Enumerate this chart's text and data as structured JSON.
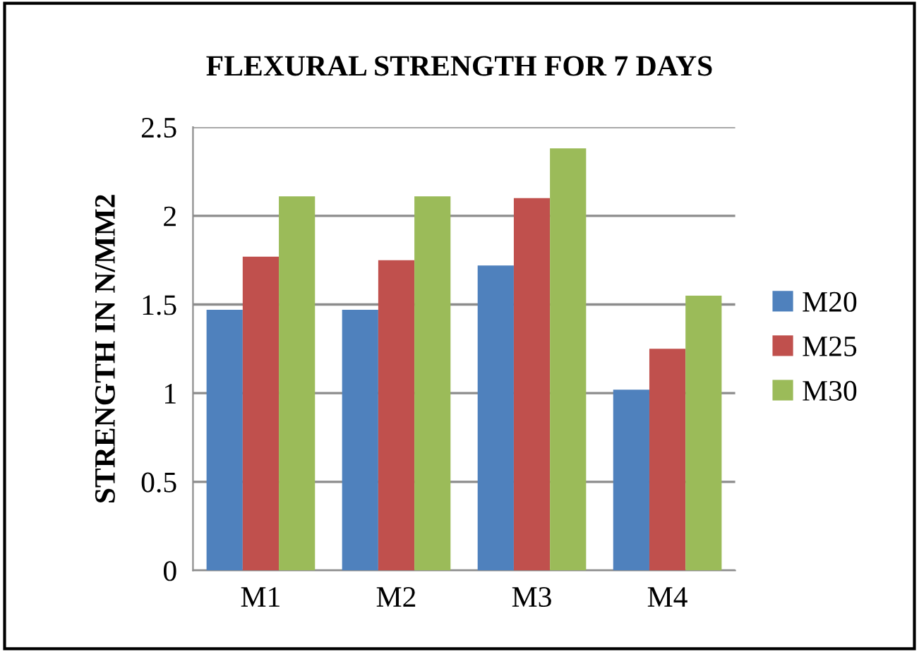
{
  "chart_data": {
    "type": "bar",
    "title": "FLEXURAL STRENGTH FOR 7 DAYS",
    "ylabel": "STRENGTH IN N/MM2",
    "categories": [
      "M1",
      "M2",
      "M3",
      "M4"
    ],
    "series": [
      {
        "name": "M20",
        "color": "#4f81bd",
        "values": [
          1.47,
          1.47,
          1.72,
          1.02
        ]
      },
      {
        "name": "M25",
        "color": "#c0504d",
        "values": [
          1.77,
          1.75,
          2.1,
          1.25
        ]
      },
      {
        "name": "M30",
        "color": "#9bbb59",
        "values": [
          2.11,
          2.11,
          2.38,
          1.55
        ]
      }
    ],
    "ylim": [
      0,
      2.5
    ],
    "yticks": [
      0,
      0.5,
      1,
      1.5,
      2,
      2.5
    ],
    "grid": "y",
    "legend": "right"
  }
}
